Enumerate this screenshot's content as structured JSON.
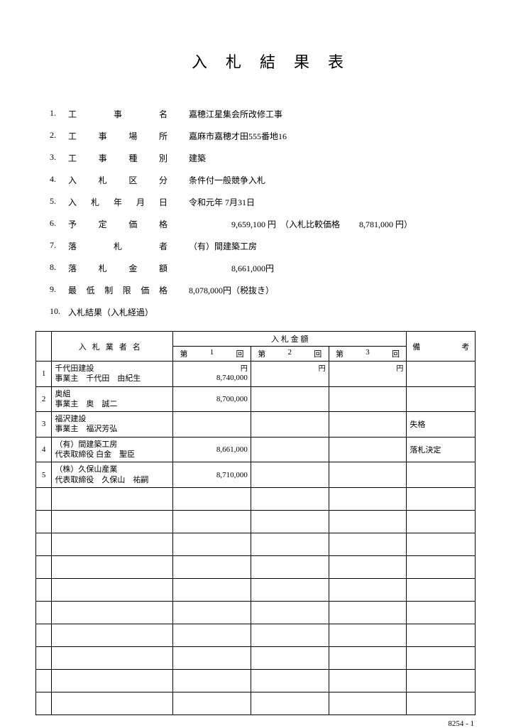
{
  "title": "入札結果表",
  "info": [
    {
      "num": "1.",
      "label_chars": [
        "工",
        "事",
        "名"
      ],
      "value": "嘉穂江星集会所改修工事"
    },
    {
      "num": "2.",
      "label_chars": [
        "工",
        "事",
        "場",
        "所"
      ],
      "value": "嘉麻市嘉穂才田555番地16"
    },
    {
      "num": "3.",
      "label_chars": [
        "工",
        "事",
        "種",
        "別"
      ],
      "value": "建築"
    },
    {
      "num": "4.",
      "label_chars": [
        "入",
        "札",
        "区",
        "分"
      ],
      "value": "条件付一般競争入札"
    },
    {
      "num": "5.",
      "label_chars": [
        "入",
        "札",
        "年",
        "月",
        "日"
      ],
      "value": "令和元年 7月31日"
    },
    {
      "num": "6.",
      "label_chars": [
        "予",
        "定",
        "価",
        "格"
      ],
      "value": "　　　　　9,659,100 円　（入札比較価格　　 8,781,000 円）"
    },
    {
      "num": "7.",
      "label_chars": [
        "落",
        "札",
        "者"
      ],
      "value": "（有）間建築工房"
    },
    {
      "num": "8.",
      "label_chars": [
        "落",
        "札",
        "金",
        "額"
      ],
      "value": "　　　　　8,661,000円"
    },
    {
      "num": "9.",
      "label_chars": [
        "最",
        "低",
        "制",
        "限",
        "価",
        "格"
      ],
      "value": "8,078,000円（税抜き）"
    },
    {
      "num": "10.",
      "label_text": "入札結果（入札経過）",
      "value": ""
    }
  ],
  "table": {
    "header_bidder": "入札業者名",
    "header_amount": "入 札 金 額",
    "header_remark": "備　　　　　考",
    "rounds": [
      [
        "第",
        "1",
        "回"
      ],
      [
        "第",
        "2",
        "回"
      ],
      [
        "第",
        "3",
        "回"
      ]
    ],
    "yen": "円",
    "rows": [
      {
        "num": "1",
        "name1": "千代田建設",
        "name2": "事業主　千代田　由紀生",
        "amounts": [
          "8,740,000",
          "",
          ""
        ],
        "remark": ""
      },
      {
        "num": "2",
        "name1": "奥組",
        "name2": "事業主　奥　誠二",
        "amounts": [
          "8,700,000",
          "",
          ""
        ],
        "remark": ""
      },
      {
        "num": "3",
        "name1": "福沢建設",
        "name2": "事業主　福沢芳弘",
        "amounts": [
          "",
          "",
          ""
        ],
        "remark": "失格"
      },
      {
        "num": "4",
        "name1": "（有）間建築工房",
        "name2": "代表取締役 白金　聖臣",
        "amounts": [
          "8,661,000",
          "",
          ""
        ],
        "remark": "落札決定"
      },
      {
        "num": "5",
        "name1": "（株）久保山産業",
        "name2": "代表取締役　久保山　祐嗣",
        "amounts": [
          "8,710,000",
          "",
          ""
        ],
        "remark": ""
      }
    ],
    "empty_rows": 10
  },
  "footer": "8254 - 1"
}
